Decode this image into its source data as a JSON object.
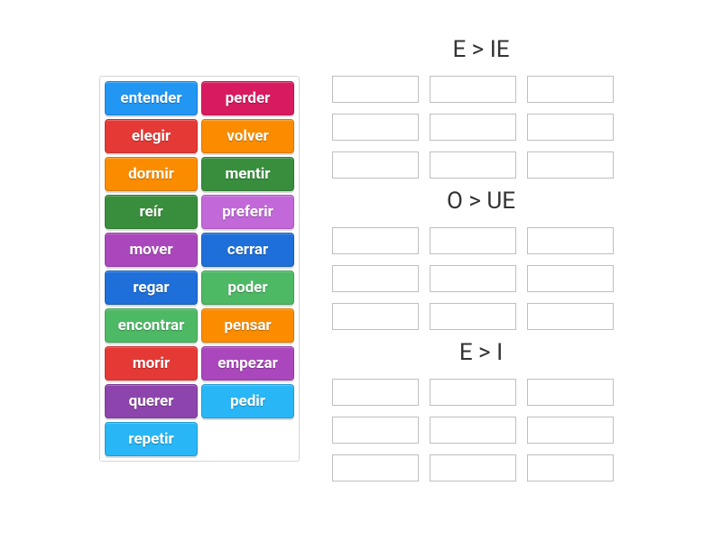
{
  "colors": {
    "blue": "#2196f3",
    "red": "#e53935",
    "orange": "#fb8c00",
    "green": "#388e3c",
    "teal": "#4db965",
    "purple": "#ab47bc",
    "magenta": "#c368d9",
    "navy": "#1e6fd9",
    "violet": "#8e44ad",
    "crimson": "#d81b60",
    "sky": "#29b6f6"
  },
  "word_bank": [
    {
      "label": "entender",
      "color": "blue"
    },
    {
      "label": "perder",
      "color": "crimson"
    },
    {
      "label": "elegir",
      "color": "red"
    },
    {
      "label": "volver",
      "color": "orange"
    },
    {
      "label": "dormir",
      "color": "orange"
    },
    {
      "label": "mentir",
      "color": "green"
    },
    {
      "label": "reír",
      "color": "green"
    },
    {
      "label": "preferir",
      "color": "magenta"
    },
    {
      "label": "mover",
      "color": "purple"
    },
    {
      "label": "cerrar",
      "color": "navy"
    },
    {
      "label": "regar",
      "color": "navy"
    },
    {
      "label": "poder",
      "color": "teal"
    },
    {
      "label": "encontrar",
      "color": "teal"
    },
    {
      "label": "pensar",
      "color": "orange"
    },
    {
      "label": "morir",
      "color": "red"
    },
    {
      "label": "empezar",
      "color": "purple"
    },
    {
      "label": "querer",
      "color": "violet"
    },
    {
      "label": "pedir",
      "color": "sky"
    },
    {
      "label": "repetir",
      "color": "sky"
    }
  ],
  "categories": [
    {
      "title": "E > IE",
      "slots": 9
    },
    {
      "title": "O > UE",
      "slots": 9
    },
    {
      "title": "E > I",
      "slots": 9
    }
  ],
  "style": {
    "tile_font_size": 17,
    "title_font_size": 26,
    "slot_border": "#bfbfbf",
    "bank_border": "#d5d5d5"
  }
}
